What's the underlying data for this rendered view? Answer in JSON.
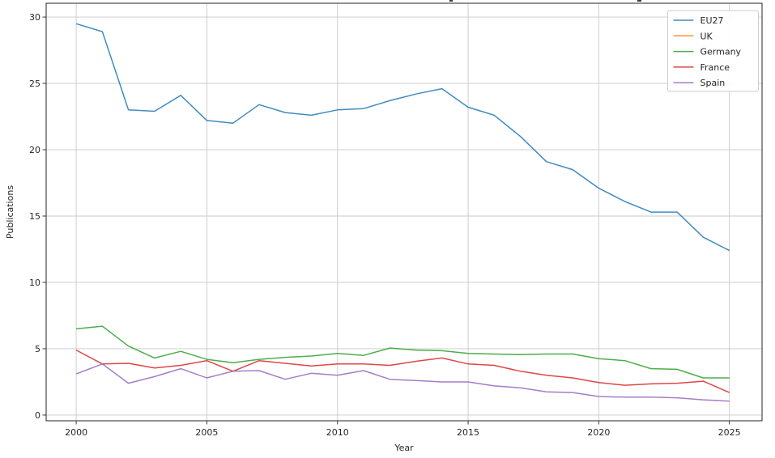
{
  "chart_data": {
    "type": "line",
    "title": "",
    "xlabel": "Year",
    "ylabel": "Publications",
    "x": [
      2000,
      2001,
      2002,
      2003,
      2004,
      2005,
      2006,
      2007,
      2008,
      2009,
      2010,
      2011,
      2012,
      2013,
      2014,
      2015,
      2016,
      2017,
      2018,
      2019,
      2020,
      2021,
      2022,
      2023,
      2024,
      2025
    ],
    "series": [
      {
        "name": "EU27",
        "color": "#1f77b4",
        "values": [
          29.5,
          28.9,
          23.0,
          22.9,
          24.1,
          22.2,
          22.0,
          23.4,
          22.8,
          22.6,
          23.0,
          23.1,
          23.7,
          24.2,
          24.6,
          23.2,
          22.6,
          21.0,
          19.1,
          18.5,
          17.1,
          16.1,
          15.3,
          15.3,
          13.4,
          12.4
        ]
      },
      {
        "name": "UK",
        "color": "#ff7f0e",
        "values": [
          null,
          null,
          null,
          null,
          null,
          null,
          null,
          null,
          null,
          null,
          null,
          null,
          null,
          null,
          null,
          null,
          null,
          null,
          null,
          null,
          null,
          null,
          null,
          null,
          null,
          null
        ]
      },
      {
        "name": "Germany",
        "color": "#2ca02c",
        "values": [
          6.5,
          6.7,
          5.2,
          4.3,
          4.8,
          4.2,
          3.95,
          4.2,
          4.35,
          4.45,
          4.65,
          4.5,
          5.05,
          4.9,
          4.85,
          4.65,
          4.6,
          4.55,
          4.6,
          4.6,
          4.25,
          4.1,
          3.5,
          3.45,
          2.8,
          2.8
        ]
      },
      {
        "name": "France",
        "color": "#d62728",
        "values": [
          4.9,
          3.85,
          3.9,
          3.55,
          3.75,
          4.1,
          3.3,
          4.1,
          3.9,
          3.7,
          3.85,
          3.85,
          3.75,
          4.05,
          4.3,
          3.85,
          3.75,
          3.3,
          3.0,
          2.8,
          2.45,
          2.25,
          2.35,
          2.4,
          2.55,
          1.7
        ]
      },
      {
        "name": "Spain",
        "color": "#9467bd",
        "values": [
          3.1,
          3.85,
          2.4,
          2.9,
          3.5,
          2.8,
          3.3,
          3.35,
          2.7,
          3.15,
          3.0,
          3.35,
          2.7,
          2.6,
          2.5,
          2.5,
          2.2,
          2.05,
          1.75,
          1.7,
          1.4,
          1.35,
          1.35,
          1.3,
          1.15,
          1.05
        ]
      }
    ],
    "xticks": [
      2000,
      2005,
      2010,
      2015,
      2020,
      2025
    ],
    "yticks": [
      0,
      5,
      10,
      15,
      20,
      25,
      30
    ],
    "xlim": [
      1998.85,
      2026.25
    ],
    "ylim": [
      -0.43,
      31.04
    ],
    "grid": true,
    "legend": {
      "position": "upper right",
      "entries": [
        "EU27",
        "UK",
        "Germany",
        "France",
        "Spain"
      ]
    },
    "style": {
      "grid_color": "#c9c9c9",
      "spine_color": "#262626",
      "tick_color": "#262626",
      "legend_border_color": "#cccccc",
      "line_opacity": 0.85
    }
  }
}
